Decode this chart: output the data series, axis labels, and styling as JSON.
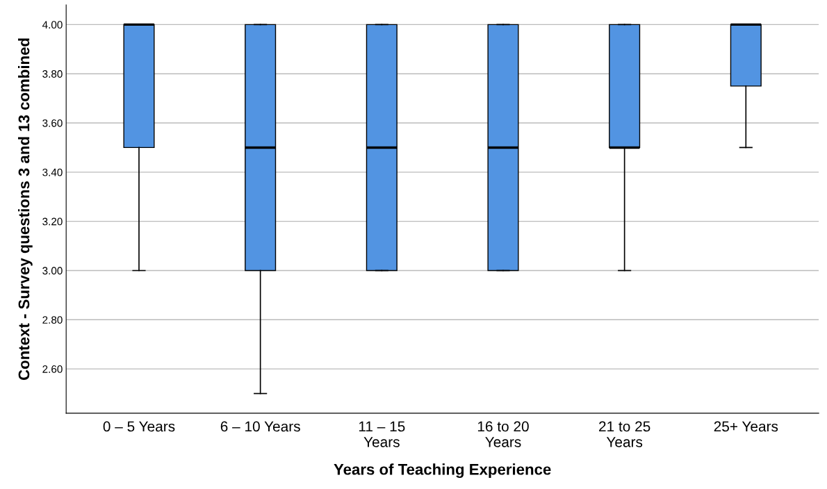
{
  "chart_data": {
    "type": "box",
    "xlabel": "Years of Teaching Experience",
    "ylabel": "Context - Survey questions 3 and 13 combined",
    "categories": [
      "0 – 5 Years",
      "6 – 10 Years",
      "11 – 15 Years",
      "16 to 20 Years",
      "21 to 25 Years",
      "25+ Years"
    ],
    "boxes": [
      {
        "low": 3.0,
        "q1": 3.5,
        "median": 4.0,
        "q3": 4.0,
        "high": 4.0
      },
      {
        "low": 2.5,
        "q1": 3.0,
        "median": 3.5,
        "q3": 4.0,
        "high": 4.0
      },
      {
        "low": 3.0,
        "q1": 3.0,
        "median": 3.5,
        "q3": 4.0,
        "high": 4.0
      },
      {
        "low": 3.0,
        "q1": 3.0,
        "median": 3.5,
        "q3": 4.0,
        "high": 4.0
      },
      {
        "low": 3.0,
        "q1": 3.5,
        "median": 3.5,
        "q3": 4.0,
        "high": 4.0
      },
      {
        "low": 3.5,
        "q1": 3.75,
        "median": 4.0,
        "q3": 4.0,
        "high": 4.0
      }
    ],
    "color": "#5294e2",
    "ylim": [
      2.42,
      4.08
    ],
    "yticks": [
      {
        "value": 2.6,
        "label": "2.60"
      },
      {
        "value": 2.8,
        "label": "2.80"
      },
      {
        "value": 3.0,
        "label": "3.00"
      },
      {
        "value": 3.2,
        "label": "3.20"
      },
      {
        "value": 3.4,
        "label": "3.40"
      },
      {
        "value": 3.6,
        "label": "3.60"
      },
      {
        "value": 3.8,
        "label": "3.80"
      },
      {
        "value": 4.0,
        "label": "4.00"
      }
    ],
    "grid": "y"
  }
}
